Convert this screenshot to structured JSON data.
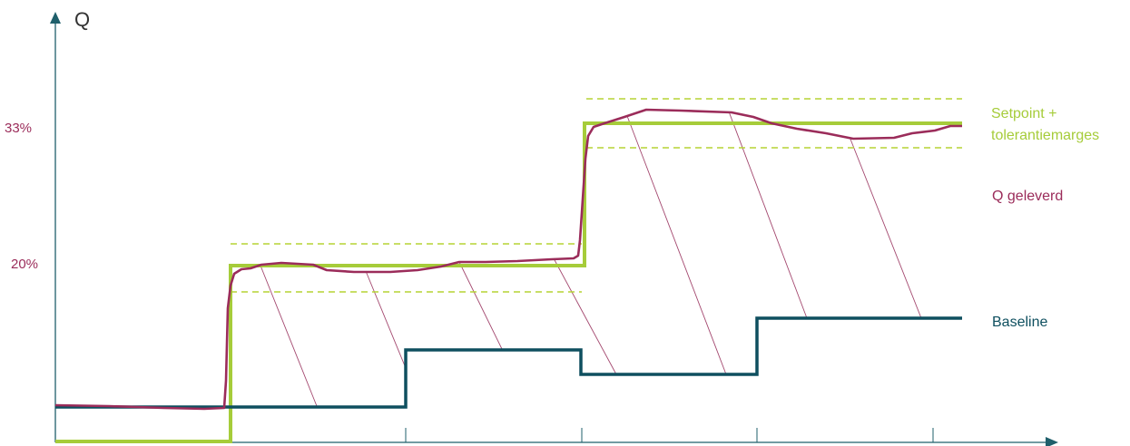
{
  "axis": {
    "y_label": "Q"
  },
  "y_ticks": [
    {
      "label": "33%",
      "value": 33
    },
    {
      "label": "20%",
      "value": 20
    }
  ],
  "legend": {
    "setpoint_line1": "Setpoint +",
    "setpoint_line2": "tolerantiemarges",
    "delivered": "Q geleverd",
    "baseline": "Baseline"
  },
  "colors": {
    "axis": "#1f5f6b",
    "setpoint": "#a6cc3a",
    "tolerance": "#b5d334",
    "delivered": "#9b2c5a",
    "baseline": "#0e4f5f",
    "hatch": "#a3476e"
  }
}
